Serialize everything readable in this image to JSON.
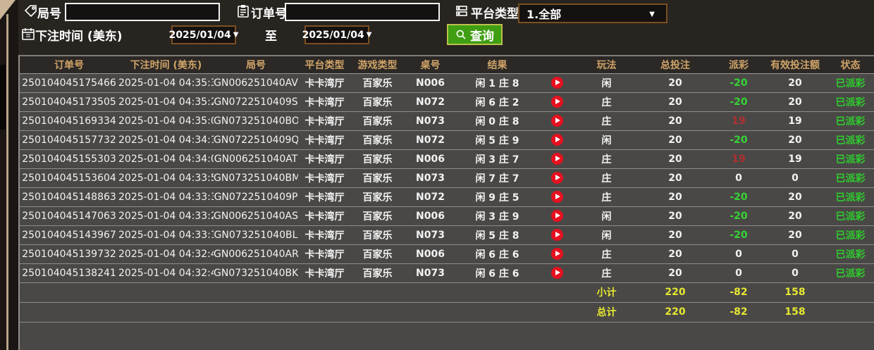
{
  "filters": {
    "round_label": "局号",
    "round_value": "",
    "order_label": "订单号",
    "order_value": "",
    "platform_label": "平台类型",
    "platform_selected": "1.全部",
    "bet_time_label": "下注时间 (美东)",
    "date_from": "2025/01/04",
    "to_label": "至",
    "date_to": "2025/01/04",
    "search_label": "查询"
  },
  "table": {
    "headers": [
      "订单号",
      "下注时间 (美东)",
      "局号",
      "平台类型",
      "游戏类型",
      "桌号",
      "结果",
      "",
      "玩法",
      "总投注",
      "派彩",
      "有效投注额",
      "状态"
    ],
    "rows": [
      {
        "order": "250104045175466",
        "time": "2025-01-04 04:35:35",
        "round": "GN006251040AV",
        "platform": "卡卡湾厅",
        "game": "百家乐",
        "table": "N006",
        "result": "闲 1 庄 8",
        "play": "闲",
        "total_bet": "20",
        "payout": "-20",
        "valid_bet": "20",
        "status": "已派彩"
      },
      {
        "order": "250104045173505",
        "time": "2025-01-04 04:35:25",
        "round": "GN0722510409S",
        "platform": "卡卡湾厅",
        "game": "百家乐",
        "table": "N072",
        "result": "闲 6 庄 2",
        "play": "庄",
        "total_bet": "20",
        "payout": "-20",
        "valid_bet": "20",
        "status": "已派彩"
      },
      {
        "order": "250104045169334",
        "time": "2025-01-04 04:35:08",
        "round": "GN073251040BO",
        "platform": "卡卡湾厅",
        "game": "百家乐",
        "table": "N073",
        "result": "闲 0 庄 8",
        "play": "庄",
        "total_bet": "20",
        "payout": "19",
        "valid_bet": "19",
        "status": "已派彩"
      },
      {
        "order": "250104045157732",
        "time": "2025-01-04 04:34:14",
        "round": "GN0722510409Q",
        "platform": "卡卡湾厅",
        "game": "百家乐",
        "table": "N072",
        "result": "闲 5 庄 9",
        "play": "闲",
        "total_bet": "20",
        "payout": "-20",
        "valid_bet": "20",
        "status": "已派彩"
      },
      {
        "order": "250104045155303",
        "time": "2025-01-04 04:34:05",
        "round": "GN006251040AT",
        "platform": "卡卡湾厅",
        "game": "百家乐",
        "table": "N006",
        "result": "闲 3 庄 7",
        "play": "庄",
        "total_bet": "20",
        "payout": "19",
        "valid_bet": "19",
        "status": "已派彩"
      },
      {
        "order": "250104045153604",
        "time": "2025-01-04 04:33:58",
        "round": "GN073251040BM",
        "platform": "卡卡湾厅",
        "game": "百家乐",
        "table": "N073",
        "result": "闲 7 庄 7",
        "play": "庄",
        "total_bet": "20",
        "payout": "0",
        "valid_bet": "0",
        "status": "已派彩"
      },
      {
        "order": "250104045148863",
        "time": "2025-01-04 04:33:34",
        "round": "GN0722510409P",
        "platform": "卡卡湾厅",
        "game": "百家乐",
        "table": "N072",
        "result": "闲 9 庄 5",
        "play": "庄",
        "total_bet": "20",
        "payout": "-20",
        "valid_bet": "20",
        "status": "已派彩"
      },
      {
        "order": "250104045147063",
        "time": "2025-01-04 04:33:25",
        "round": "GN006251040AS",
        "platform": "卡卡湾厅",
        "game": "百家乐",
        "table": "N006",
        "result": "闲 3 庄 9",
        "play": "闲",
        "total_bet": "20",
        "payout": "-20",
        "valid_bet": "20",
        "status": "已派彩"
      },
      {
        "order": "250104045143967",
        "time": "2025-01-04 04:33:10",
        "round": "GN073251040BL",
        "platform": "卡卡湾厅",
        "game": "百家乐",
        "table": "N073",
        "result": "闲 5 庄 8",
        "play": "闲",
        "total_bet": "20",
        "payout": "-20",
        "valid_bet": "20",
        "status": "已派彩"
      },
      {
        "order": "250104045139732",
        "time": "2025-01-04 04:32:49",
        "round": "GN006251040AR",
        "platform": "卡卡湾厅",
        "game": "百家乐",
        "table": "N006",
        "result": "闲 6 庄 6",
        "play": "庄",
        "total_bet": "20",
        "payout": "0",
        "valid_bet": "0",
        "status": "已派彩"
      },
      {
        "order": "250104045138241",
        "time": "2025-01-04 04:32:42",
        "round": "GN073251040BK",
        "platform": "卡卡湾厅",
        "game": "百家乐",
        "table": "N073",
        "result": "闲 6 庄 6",
        "play": "庄",
        "total_bet": "20",
        "payout": "0",
        "valid_bet": "0",
        "status": "已派彩"
      }
    ],
    "subtotal": {
      "label": "小计",
      "total_bet": "220",
      "payout": "-82",
      "valid_bet": "158"
    },
    "grand_total": {
      "label": "总计",
      "total_bet": "220",
      "payout": "-82",
      "valid_bet": "158"
    }
  },
  "colors": {
    "header_text": "#d0a468",
    "row_bg": "#4a4846",
    "header_bg": "#2b2826",
    "payout_positive": "#b03030",
    "payout_negative": "#35d435",
    "status_green": "#2ecc2e",
    "totals_yellow": "#e5e832",
    "search_button_green": "#3f9e12",
    "search_button_border": "#bcc14d",
    "date_border_brown": "#7b5022",
    "play_icon_red": "#e6101f"
  }
}
